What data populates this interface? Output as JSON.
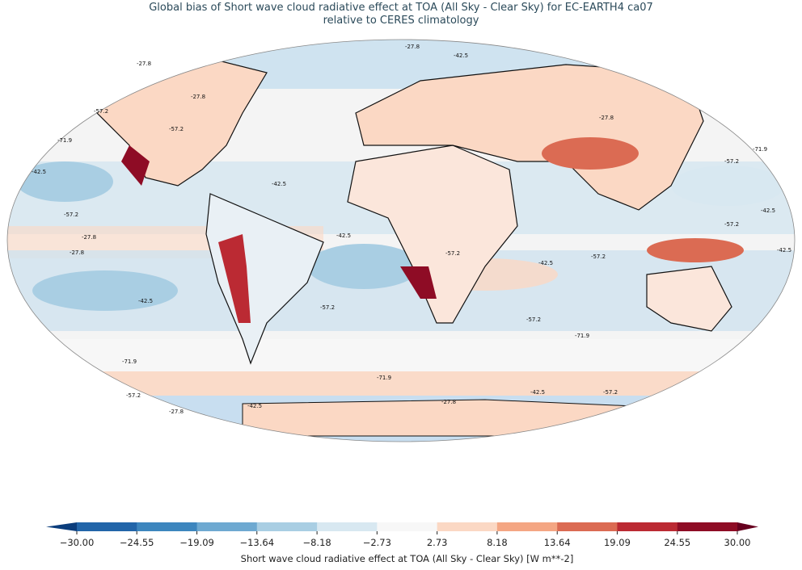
{
  "title": "Global bias of Short wave cloud radiative effect at TOA (All Sky - Clear Sky) for EC-EARTH4 ca07",
  "subtitle": "relative to CERES climatology",
  "contour_levels": [
    -71.9,
    -57.2,
    -42.5,
    -27.8
  ],
  "colorbar": {
    "label": "Short wave cloud radiative effect at TOA (All Sky - Clear Sky) [W m**-2]",
    "ticks": [
      {
        "value": -30,
        "label": "−30.00"
      },
      {
        "value": -24.55,
        "label": "−24.55"
      },
      {
        "value": -19.09,
        "label": "−19.09"
      },
      {
        "value": -13.64,
        "label": "−13.64"
      },
      {
        "value": -8.18,
        "label": "−8.18"
      },
      {
        "value": -2.73,
        "label": "−2.73"
      },
      {
        "value": 2.73,
        "label": "2.73"
      },
      {
        "value": 8.18,
        "label": "8.18"
      },
      {
        "value": 13.64,
        "label": "13.64"
      },
      {
        "value": 19.09,
        "label": "19.09"
      },
      {
        "value": 24.55,
        "label": "24.55"
      },
      {
        "value": 30,
        "label": "30.00"
      }
    ],
    "colors": [
      "#2265a9",
      "#3d86be",
      "#6ea9d1",
      "#a9cee3",
      "#d8e8f1",
      "#f7f7f7",
      "#fbd8c4",
      "#f4a683",
      "#db6b53",
      "#bb2a33",
      "#8e0c25"
    ],
    "under_color": "#0b3d7c",
    "over_color": "#67001f"
  }
}
